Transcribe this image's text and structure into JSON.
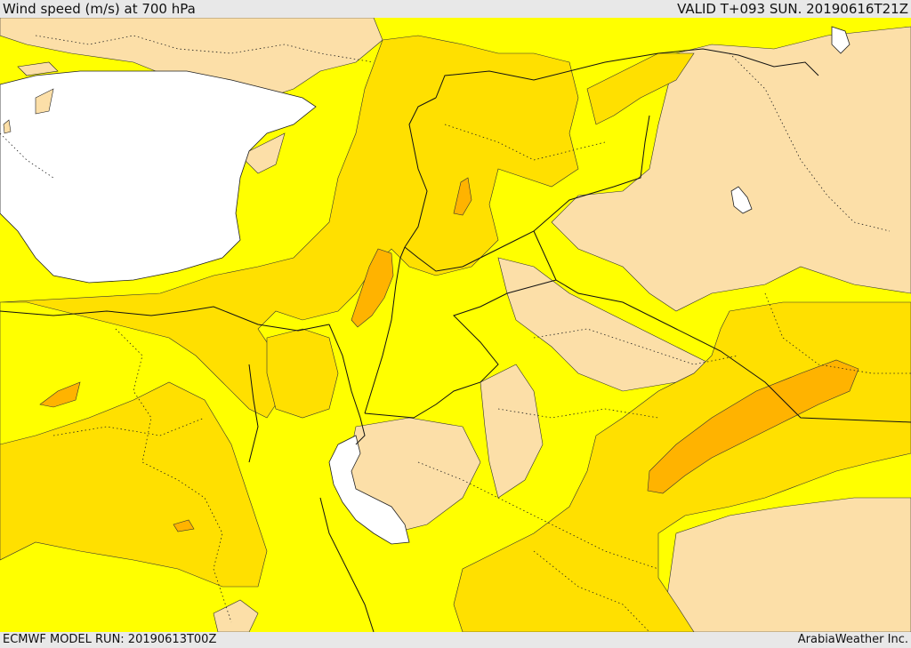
{
  "header": {
    "title": "Wind speed (m/s) at 700 hPa",
    "valid": "VALID T+093 SUN. 20190616T21Z"
  },
  "footer": {
    "model_run": "ECMWF MODEL RUN: 20190613T00Z",
    "credit": "ArabiaWeather Inc."
  },
  "colors": {
    "background_yellow": "#ffff00",
    "peach": "#fcdfa8",
    "gold": "#ffe000",
    "orange": "#ffb300",
    "dark_orange": "#f49a1e",
    "sea": "#ffffff",
    "border": "#111111"
  }
}
